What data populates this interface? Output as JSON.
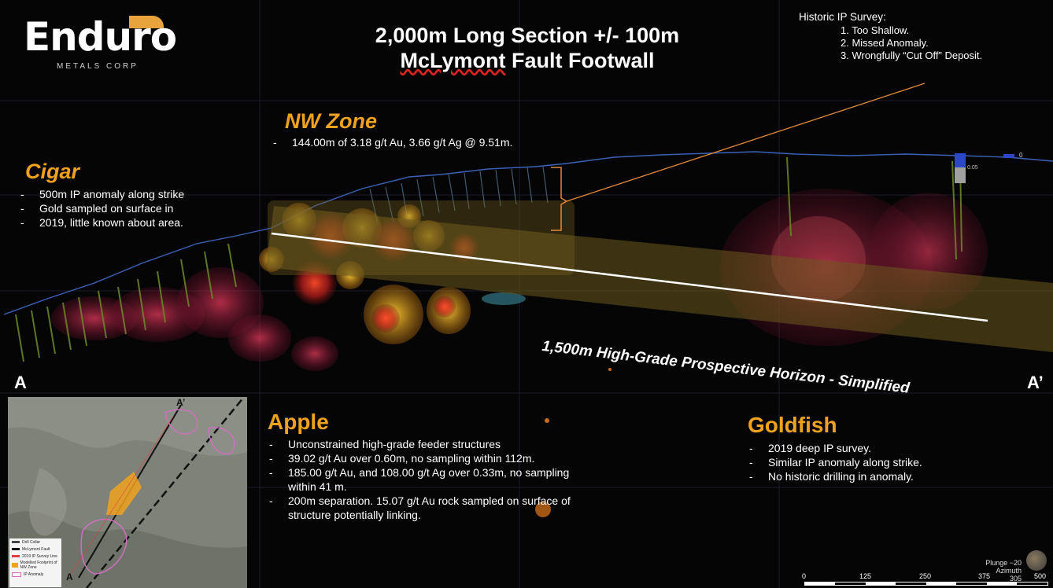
{
  "logo": {
    "name": "Enduro",
    "subtitle": "METALS CORP"
  },
  "title": {
    "line1": "2,000m Long Section +/- 100m",
    "line2_underlined": "McLymont",
    "line2_rest": " Fault Footwall"
  },
  "historic_ip": {
    "heading": "Historic IP Survey:",
    "items": [
      "1. Too Shallow.",
      "2. Missed Anomaly.",
      "3. Wrongfully “Cut Off” Deposit."
    ]
  },
  "nw_zone": {
    "title": "NW Zone",
    "bullet": "144.00m of 3.18 g/t Au, 3.66 g/t Ag @ 9.51m."
  },
  "cigar": {
    "title": "Cigar",
    "bullets": [
      "500m IP anomaly along strike",
      "Gold sampled on surface in",
      "2019, little known about area."
    ]
  },
  "horizon_label": "1,500m High-Grade Prospective Horizon - Simplified",
  "section_labels": {
    "a": "A",
    "a_prime": "A’"
  },
  "inset_labels": {
    "a": "A",
    "a_prime": "A’"
  },
  "apple": {
    "title": "Apple",
    "bullets": [
      "Unconstrained high-grade feeder structures",
      "39.02 g/t Au over 0.60m, no sampling within 112m.",
      "185.00 g/t Au, and 108.00 g/t Ag over 0.33m, no sampling within 41 m.",
      "200m separation. 15.07 g/t Au rock sampled on surface of structure potentially linking."
    ]
  },
  "goldfish": {
    "title": "Goldfish",
    "bullets": [
      "2019 deep IP survey.",
      "Similar IP anomaly along strike.",
      "No historic drilling in anomaly."
    ]
  },
  "legend": {
    "items": [
      "Drill Collar",
      "McLymont Fault",
      "2019 IP Survey Line",
      "Modelled Footprint of NW Zone",
      "IP Anomaly"
    ],
    "colors": [
      "#444444",
      "#111111",
      "#e04040",
      "#f0a21e",
      "#d070c0"
    ]
  },
  "scale_bar": {
    "ticks": [
      "0",
      "125",
      "250",
      "375",
      "500"
    ]
  },
  "orientation": {
    "plunge": "Plunge −20",
    "azimuth": "Azimuth 305"
  },
  "legend_top_right": {
    "value_top": "0",
    "value_mid": "0.05"
  },
  "colors": {
    "accent": "#f0a21e",
    "ip_anomaly": "#8a1144",
    "horizon_band": "#6b5a1e"
  }
}
